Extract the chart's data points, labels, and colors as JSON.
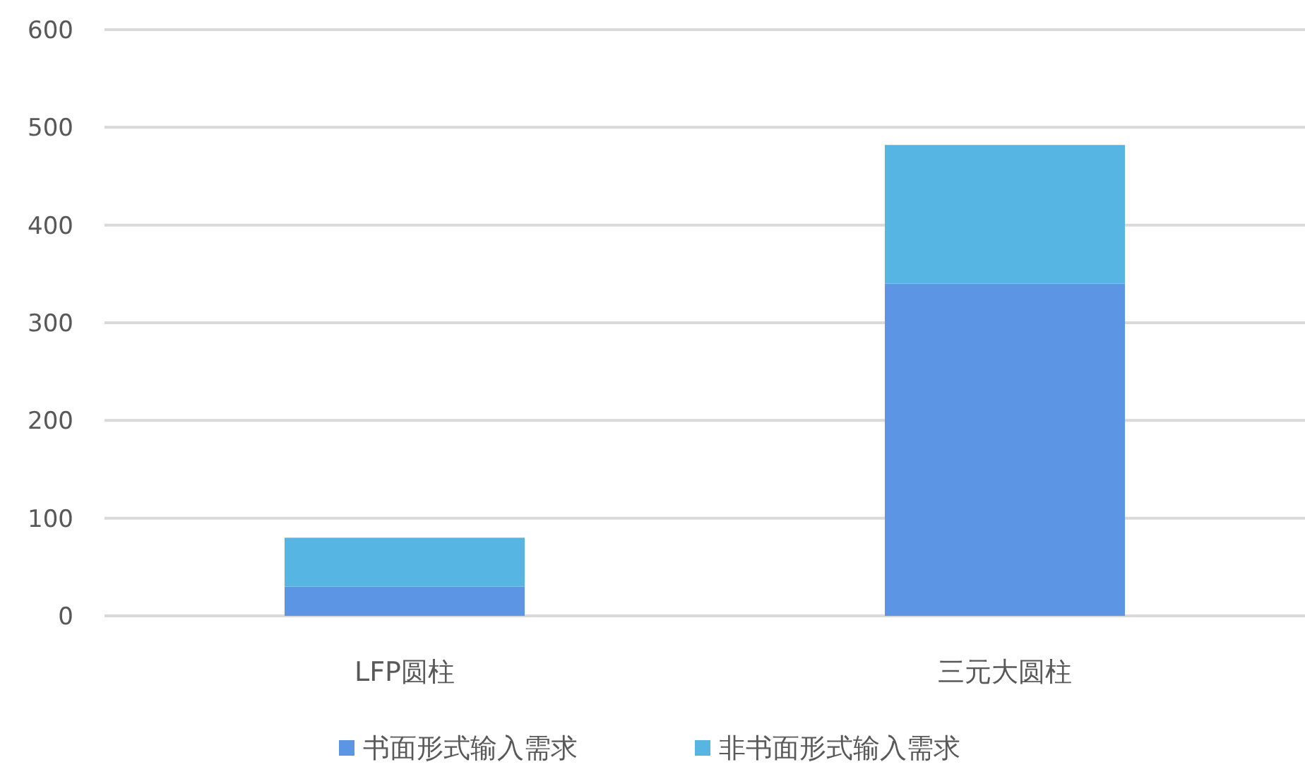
{
  "chart_data": {
    "type": "bar",
    "stacked": true,
    "categories": [
      "LFP圆柱",
      "三元大圆柱"
    ],
    "series": [
      {
        "name": "书面形式输入需求",
        "color": "#5b95e3",
        "values": [
          30,
          340
        ]
      },
      {
        "name": "非书面形式输入需求",
        "color": "#57b5e3",
        "values": [
          50,
          142
        ]
      }
    ],
    "ylim": [
      0,
      600
    ],
    "yticks": [
      0,
      100,
      200,
      300,
      400,
      500,
      600
    ],
    "grid": "y",
    "legend": "bottom"
  }
}
